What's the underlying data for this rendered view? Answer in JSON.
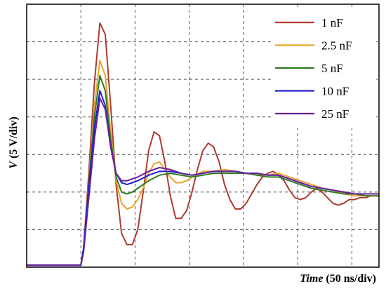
{
  "chart_data": {
    "type": "line",
    "xlabel": {
      "italic": "Time",
      "rest": " (50 ns/div)"
    },
    "ylabel": {
      "italic": "V",
      "rest": " (5 V/div)"
    },
    "x_unit": "div (50 ns/div)",
    "y_unit": "div (5 V/div)",
    "xlim": [
      0,
      6.5
    ],
    "ylim": [
      0,
      7
    ],
    "grid": true,
    "grid_style": "dashed",
    "legend_position": "top-right",
    "series": [
      {
        "name": "1 nF",
        "color": "#b03a2e",
        "x": [
          0,
          1.0,
          1.05,
          1.15,
          1.25,
          1.35,
          1.45,
          1.55,
          1.65,
          1.75,
          1.85,
          1.95,
          2.05,
          2.15,
          2.25,
          2.35,
          2.45,
          2.55,
          2.65,
          2.75,
          2.85,
          2.95,
          3.05,
          3.15,
          3.25,
          3.35,
          3.45,
          3.55,
          3.65,
          3.75,
          3.85,
          3.95,
          4.05,
          4.15,
          4.25,
          4.35,
          4.45,
          4.55,
          4.65,
          4.75,
          4.85,
          4.95,
          5.05,
          5.15,
          5.25,
          5.35,
          5.45,
          5.55,
          5.65,
          5.75,
          5.85,
          5.95,
          6.05,
          6.15,
          6.25,
          6.35,
          6.5
        ],
        "y": [
          0.05,
          0.05,
          0.5,
          2.6,
          4.9,
          6.5,
          6.2,
          4.3,
          2.2,
          0.9,
          0.6,
          0.6,
          1.0,
          2.0,
          3.1,
          3.6,
          3.5,
          2.8,
          1.9,
          1.3,
          1.3,
          1.5,
          2.0,
          2.6,
          3.1,
          3.3,
          3.2,
          2.8,
          2.2,
          1.8,
          1.55,
          1.55,
          1.7,
          1.95,
          2.2,
          2.4,
          2.5,
          2.55,
          2.45,
          2.3,
          2.05,
          1.85,
          1.8,
          1.85,
          2.0,
          2.1,
          2.0,
          1.85,
          1.7,
          1.65,
          1.7,
          1.8,
          1.8,
          1.85,
          1.85,
          1.9,
          1.9
        ]
      },
      {
        "name": "2.5 nF",
        "color": "#e8a52a",
        "x": [
          0,
          1.0,
          1.05,
          1.15,
          1.25,
          1.35,
          1.45,
          1.55,
          1.65,
          1.75,
          1.85,
          1.95,
          2.05,
          2.15,
          2.25,
          2.35,
          2.45,
          2.55,
          2.65,
          2.75,
          2.85,
          2.95,
          3.05,
          3.25,
          3.45,
          3.65,
          3.85,
          4.05,
          4.25,
          4.45,
          4.65,
          4.85,
          5.05,
          5.25,
          5.45,
          5.65,
          5.85,
          6.05,
          6.25,
          6.5
        ],
        "y": [
          0.05,
          0.05,
          0.5,
          2.4,
          4.3,
          5.5,
          5.1,
          3.6,
          2.3,
          1.7,
          1.55,
          1.6,
          1.8,
          2.1,
          2.5,
          2.75,
          2.8,
          2.6,
          2.4,
          2.25,
          2.25,
          2.3,
          2.4,
          2.55,
          2.55,
          2.6,
          2.55,
          2.5,
          2.45,
          2.45,
          2.5,
          2.4,
          2.3,
          2.2,
          2.1,
          2.05,
          1.95,
          1.9,
          1.9,
          1.9
        ]
      },
      {
        "name": "5 nF",
        "color": "#2e7d1f",
        "x": [
          0,
          1.0,
          1.05,
          1.15,
          1.25,
          1.35,
          1.45,
          1.55,
          1.65,
          1.75,
          1.85,
          1.95,
          2.05,
          2.25,
          2.45,
          2.65,
          2.85,
          3.05,
          3.25,
          3.45,
          3.65,
          3.85,
          4.05,
          4.25,
          4.45,
          4.65,
          4.85,
          5.05,
          5.25,
          5.45,
          5.65,
          5.85,
          6.05,
          6.25,
          6.5
        ],
        "y": [
          0.05,
          0.05,
          0.5,
          2.3,
          4.0,
          5.1,
          4.7,
          3.4,
          2.4,
          2.0,
          1.95,
          2.0,
          2.1,
          2.3,
          2.45,
          2.5,
          2.45,
          2.4,
          2.45,
          2.5,
          2.5,
          2.5,
          2.5,
          2.45,
          2.4,
          2.4,
          2.3,
          2.2,
          2.1,
          2.05,
          2.0,
          1.95,
          1.95,
          1.9,
          1.9
        ]
      },
      {
        "name": "10 nF",
        "color": "#1f1fd0",
        "x": [
          0,
          1.0,
          1.05,
          1.15,
          1.25,
          1.35,
          1.45,
          1.55,
          1.65,
          1.75,
          1.85,
          1.95,
          2.05,
          2.25,
          2.45,
          2.65,
          2.85,
          3.05,
          3.25,
          3.45,
          3.65,
          3.85,
          4.05,
          4.25,
          4.45,
          4.65,
          4.85,
          5.05,
          5.25,
          5.45,
          5.65,
          5.85,
          6.05,
          6.25,
          6.5
        ],
        "y": [
          0.05,
          0.05,
          0.5,
          2.2,
          3.7,
          4.7,
          4.3,
          3.2,
          2.5,
          2.25,
          2.2,
          2.25,
          2.3,
          2.45,
          2.55,
          2.55,
          2.5,
          2.45,
          2.5,
          2.55,
          2.55,
          2.55,
          2.5,
          2.5,
          2.45,
          2.45,
          2.35,
          2.25,
          2.15,
          2.1,
          2.05,
          2.0,
          1.95,
          1.95,
          1.95
        ]
      },
      {
        "name": "25 nF",
        "color": "#6a1f9a",
        "x": [
          0,
          1.0,
          1.05,
          1.15,
          1.25,
          1.35,
          1.45,
          1.55,
          1.65,
          1.75,
          1.85,
          1.95,
          2.05,
          2.25,
          2.45,
          2.65,
          2.85,
          3.05,
          3.25,
          3.45,
          3.65,
          3.85,
          4.05,
          4.25,
          4.45,
          4.65,
          4.85,
          5.05,
          5.25,
          5.45,
          5.65,
          5.85,
          6.05,
          6.25,
          6.5
        ],
        "y": [
          0.05,
          0.05,
          0.4,
          1.9,
          3.4,
          4.5,
          4.2,
          3.2,
          2.5,
          2.3,
          2.3,
          2.35,
          2.4,
          2.55,
          2.65,
          2.6,
          2.5,
          2.45,
          2.5,
          2.55,
          2.55,
          2.55,
          2.5,
          2.5,
          2.45,
          2.45,
          2.35,
          2.25,
          2.15,
          2.1,
          2.05,
          2.0,
          1.95,
          1.95,
          1.95
        ]
      }
    ]
  }
}
